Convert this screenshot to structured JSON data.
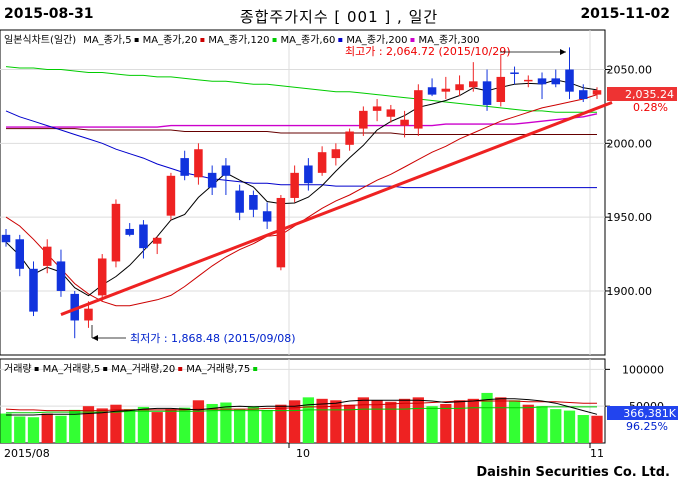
{
  "header": {
    "start_date": "2015-08-31",
    "title": "종합주가지수 [ 001 ] , 일간",
    "end_date": "2015-11-02"
  },
  "price_panel": {
    "legend": [
      {
        "text": "일본식차트(일간)",
        "color": "#000000",
        "dot": false
      },
      {
        "text": "MA_종가,5",
        "color": "#000000",
        "dot": true
      },
      {
        "text": "MA_종가,20",
        "color": "#cc0000",
        "dot": true
      },
      {
        "text": "MA_종가,120",
        "color": "#00cc00",
        "dot": true
      },
      {
        "text": "MA_종가,60",
        "color": "#0000cc",
        "dot": true
      },
      {
        "text": "MA_종가,200",
        "color": "#cc00cc",
        "dot": true
      },
      {
        "text": "MA_종가,300",
        "color": "#000000",
        "dot": false
      }
    ],
    "max_label": "최고가 : 2,064.72 (2015/10/29)",
    "min_label": "최저가 : 1,868.48 (2015/09/08)",
    "current_value": "2,035.24",
    "current_change": "0.28%",
    "y_ticks": [
      "2050.00",
      "2000.00",
      "1950.00",
      "1900.00"
    ]
  },
  "volume_panel": {
    "legend": [
      {
        "text": "거래량",
        "color": "#000000",
        "dot": true
      },
      {
        "text": "MA_거래량,5",
        "color": "#000000",
        "dot": true
      },
      {
        "text": "MA_거래량,20",
        "color": "#cc0000",
        "dot": true
      },
      {
        "text": "MA_거래량,75",
        "color": "#00cc00",
        "dot": true
      }
    ],
    "y_ticks": [
      "100000",
      "50000"
    ],
    "current_value": "366,381K",
    "current_change": "96.25%"
  },
  "x_axis": {
    "labels": [
      "2015/08",
      "10",
      "11"
    ]
  },
  "footer": "Daishin Securities Co. Ltd.",
  "colors": {
    "up": "#ee2222",
    "down": "#1133dd",
    "vol_up": "#ee2222",
    "vol_down": "#33ff33",
    "ma5": "#000000",
    "ma20": "#cc0000",
    "ma60": "#0000cc",
    "ma120": "#00cc00",
    "ma200": "#cc00cc",
    "ma300": "#660000"
  },
  "chart_data": {
    "type": "candlestick",
    "ylim": [
      1860,
      2070
    ],
    "candles": [
      {
        "o": 1938,
        "h": 1942,
        "l": 1930,
        "c": 1933
      },
      {
        "o": 1935,
        "h": 1938,
        "l": 1910,
        "c": 1915
      },
      {
        "o": 1915,
        "h": 1920,
        "l": 1883,
        "c": 1886
      },
      {
        "o": 1917,
        "h": 1935,
        "l": 1912,
        "c": 1930
      },
      {
        "o": 1920,
        "h": 1928,
        "l": 1896,
        "c": 1900
      },
      {
        "o": 1898,
        "h": 1900,
        "l": 1868,
        "c": 1880
      },
      {
        "o": 1880,
        "h": 1893,
        "l": 1875,
        "c": 1888
      },
      {
        "o": 1897,
        "h": 1925,
        "l": 1893,
        "c": 1922
      },
      {
        "o": 1920,
        "h": 1962,
        "l": 1916,
        "c": 1959
      },
      {
        "o": 1942,
        "h": 1946,
        "l": 1937,
        "c": 1938
      },
      {
        "o": 1945,
        "h": 1948,
        "l": 1922,
        "c": 1929
      },
      {
        "o": 1932,
        "h": 1937,
        "l": 1925,
        "c": 1936
      },
      {
        "o": 1951,
        "h": 1980,
        "l": 1948,
        "c": 1978
      },
      {
        "o": 1990,
        "h": 1995,
        "l": 1975,
        "c": 1978
      },
      {
        "o": 1977,
        "h": 2000,
        "l": 1972,
        "c": 1996
      },
      {
        "o": 1980,
        "h": 1985,
        "l": 1965,
        "c": 1970
      },
      {
        "o": 1985,
        "h": 1990,
        "l": 1965,
        "c": 1978
      },
      {
        "o": 1968,
        "h": 1972,
        "l": 1948,
        "c": 1953
      },
      {
        "o": 1965,
        "h": 1968,
        "l": 1950,
        "c": 1955
      },
      {
        "o": 1954,
        "h": 1960,
        "l": 1942,
        "c": 1947
      },
      {
        "o": 1916,
        "h": 1965,
        "l": 1914,
        "c": 1963
      },
      {
        "o": 1963,
        "h": 1985,
        "l": 1960,
        "c": 1980
      },
      {
        "o": 1985,
        "h": 1990,
        "l": 1968,
        "c": 1973
      },
      {
        "o": 1980,
        "h": 1998,
        "l": 1978,
        "c": 1994
      },
      {
        "o": 1990,
        "h": 2000,
        "l": 1985,
        "c": 1996
      },
      {
        "o": 1999,
        "h": 2010,
        "l": 1995,
        "c": 2008
      },
      {
        "o": 2010,
        "h": 2025,
        "l": 2005,
        "c": 2022
      },
      {
        "o": 2022,
        "h": 2030,
        "l": 2015,
        "c": 2025
      },
      {
        "o": 2018,
        "h": 2026,
        "l": 2014,
        "c": 2023
      },
      {
        "o": 2012,
        "h": 2022,
        "l": 2004,
        "c": 2016
      },
      {
        "o": 2010,
        "h": 2040,
        "l": 2005,
        "c": 2036
      },
      {
        "o": 2038,
        "h": 2044,
        "l": 2032,
        "c": 2033
      },
      {
        "o": 2035,
        "h": 2045,
        "l": 2030,
        "c": 2037
      },
      {
        "o": 2036,
        "h": 2046,
        "l": 2032,
        "c": 2040
      },
      {
        "o": 2038,
        "h": 2055,
        "l": 2035,
        "c": 2042
      },
      {
        "o": 2042,
        "h": 2050,
        "l": 2022,
        "c": 2026
      },
      {
        "o": 2028,
        "h": 2060,
        "l": 2025,
        "c": 2045
      },
      {
        "o": 2048,
        "h": 2052,
        "l": 2040,
        "c": 2047
      },
      {
        "o": 2042,
        "h": 2046,
        "l": 2038,
        "c": 2043
      },
      {
        "o": 2044,
        "h": 2048,
        "l": 2030,
        "c": 2040
      },
      {
        "o": 2044,
        "h": 2050,
        "l": 2038,
        "c": 2040
      },
      {
        "o": 2050,
        "h": 2065,
        "l": 2030,
        "c": 2035
      },
      {
        "o": 2036,
        "h": 2040,
        "l": 2028,
        "c": 2030
      },
      {
        "o": 2033,
        "h": 2038,
        "l": 2030,
        "c": 2036
      }
    ],
    "ma20": [
      1950,
      1944,
      1935,
      1925,
      1915,
      1905,
      1898,
      1893,
      1890,
      1890,
      1892,
      1894,
      1897,
      1903,
      1910,
      1917,
      1923,
      1928,
      1932,
      1937,
      1938,
      1944,
      1950,
      1956,
      1961,
      1965,
      1970,
      1975,
      1979,
      1984,
      1989,
      1994,
      1998,
      2003,
      2007,
      2011,
      2015,
      2018,
      2021,
      2024,
      2026,
      2028,
      2030,
      2033
    ],
    "ma60": [
      2022,
      2018,
      2015,
      2012,
      2009,
      2006,
      2003,
      2000,
      1996,
      1993,
      1990,
      1986,
      1983,
      1980,
      1978,
      1976,
      1975,
      1974,
      1973,
      1973,
      1972,
      1972,
      1972,
      1972,
      1971,
      1971,
      1971,
      1971,
      1971,
      1970,
      1970,
      1970,
      1970,
      1970,
      1970,
      1970,
      1970,
      1970,
      1970,
      1970,
      1970,
      1970,
      1970,
      1970
    ],
    "ma120": [
      2052,
      2051,
      2051,
      2050,
      2050,
      2049,
      2048,
      2048,
      2047,
      2046,
      2046,
      2045,
      2045,
      2044,
      2043,
      2042,
      2042,
      2041,
      2040,
      2040,
      2039,
      2038,
      2037,
      2036,
      2035,
      2035,
      2034,
      2033,
      2032,
      2031,
      2030,
      2029,
      2028,
      2027,
      2026,
      2025,
      2024,
      2023,
      2022,
      2022,
      2021,
      2021,
      2021,
      2021
    ],
    "ma200": [
      2011,
      2011,
      2011,
      2011,
      2011,
      2011,
      2011,
      2011,
      2011,
      2011,
      2011,
      2011,
      2012,
      2012,
      2012,
      2012,
      2012,
      2012,
      2012,
      2012,
      2012,
      2012,
      2012,
      2012,
      2012,
      2012,
      2012,
      2012,
      2012,
      2012,
      2012,
      2012,
      2013,
      2013,
      2013,
      2013,
      2013,
      2013,
      2014,
      2015,
      2016,
      2017,
      2018,
      2020
    ],
    "ma300": [
      2010,
      2010,
      2010,
      2010,
      2010,
      2010,
      2009,
      2009,
      2009,
      2009,
      2009,
      2009,
      2009,
      2008,
      2008,
      2008,
      2008,
      2008,
      2008,
      2008,
      2007,
      2007,
      2007,
      2007,
      2007,
      2007,
      2007,
      2007,
      2007,
      2006,
      2006,
      2006,
      2006,
      2006,
      2006,
      2006,
      2006,
      2006,
      2006,
      2006,
      2006,
      2006,
      2006,
      2006
    ],
    "trendline": {
      "from": [
        4,
        1884
      ],
      "to": [
        44,
        2025
      ]
    },
    "volume": {
      "ylim": [
        0,
        110000
      ],
      "values": [
        40000,
        36000,
        35000,
        40000,
        37000,
        45000,
        50000,
        47000,
        52000,
        46000,
        49000,
        42000,
        46000,
        48000,
        58000,
        53000,
        55000,
        46000,
        50000,
        45000,
        52000,
        58000,
        62000,
        60000,
        58000,
        52000,
        62000,
        58000,
        56000,
        60000,
        62000,
        50000,
        53000,
        58000,
        60000,
        68000,
        62000,
        58000,
        52000,
        50000,
        46000,
        44000,
        38000,
        37000
      ],
      "ma5": [
        38000,
        38000,
        38000,
        39000,
        39000,
        39000,
        40000,
        41000,
        43000,
        44000,
        46000,
        47000,
        47000,
        46000,
        45000,
        47000,
        49000,
        50000,
        49000,
        50000,
        50000,
        50000,
        52000,
        53000,
        54000,
        57000,
        58000,
        58000,
        58000,
        58000,
        58000,
        57000,
        55000,
        56000,
        57000,
        59000,
        60000,
        60000,
        59000,
        57000,
        54000,
        49000,
        44000,
        39000
      ],
      "ma20": [
        46000,
        45000,
        45000,
        44000,
        44000,
        44000,
        44000,
        44000,
        45000,
        45000,
        45000,
        45000,
        45000,
        45000,
        46000,
        46000,
        46000,
        46000,
        46000,
        47000,
        47000,
        48000,
        49000,
        49000,
        50000,
        51000,
        52000,
        52000,
        53000,
        54000,
        54000,
        55000,
        56000,
        57000,
        57000,
        57000,
        57000,
        57000,
        56000,
        56000,
        56000,
        55000,
        54000,
        54000
      ],
      "ma75": [
        41000,
        41000,
        41000,
        42000,
        42000,
        42000,
        42000,
        42000,
        42000,
        43000,
        43000,
        43000,
        43000,
        43000,
        43000,
        44000,
        44000,
        44000,
        44000,
        44000,
        44000,
        44000,
        45000,
        45000,
        45000,
        45000,
        46000,
        46000,
        46000,
        46000,
        47000,
        47000,
        47000,
        47000,
        48000,
        48000,
        48000,
        48000,
        48000,
        49000,
        49000,
        49000,
        49000,
        49000
      ]
    }
  }
}
